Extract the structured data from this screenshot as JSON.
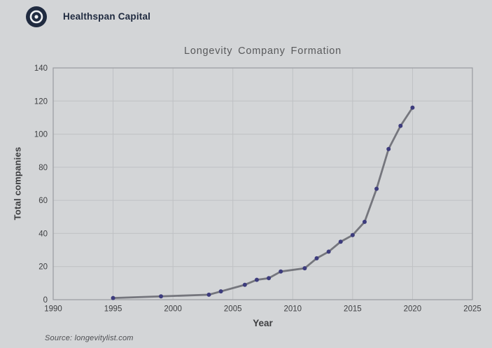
{
  "header": {
    "brand": "Healthspan Capital",
    "logo_icon": "bullseye-icon",
    "logo_color": "#202b40",
    "logo_ring_color": "#eef0f2"
  },
  "chart_data": {
    "type": "line",
    "title": "Longevity Company Formation",
    "xlabel": "Year",
    "ylabel": "Total companies",
    "x": [
      1995,
      1999,
      2003,
      2004,
      2006,
      2007,
      2008,
      2009,
      2011,
      2012,
      2013,
      2014,
      2015,
      2016,
      2017,
      2018,
      2019,
      2020
    ],
    "y": [
      1,
      2,
      3,
      5,
      9,
      12,
      13,
      17,
      19,
      25,
      29,
      35,
      39,
      47,
      67,
      91,
      105,
      116
    ],
    "xlim": [
      1990,
      2025
    ],
    "ylim": [
      0,
      140
    ],
    "xticks": [
      1990,
      1995,
      2000,
      2005,
      2010,
      2015,
      2020,
      2025
    ],
    "yticks": [
      0,
      20,
      40,
      60,
      80,
      100,
      120,
      140
    ],
    "grid": true,
    "legend": false,
    "line_color": "#75767d",
    "marker_color": "#3d3c7d",
    "grid_color": "#bfc1c4",
    "border_color": "#9a9ca0",
    "tick_color": "#3f4043",
    "background_color": "#d3d5d7"
  },
  "footer": {
    "source": "Source: longevitylist.com"
  }
}
